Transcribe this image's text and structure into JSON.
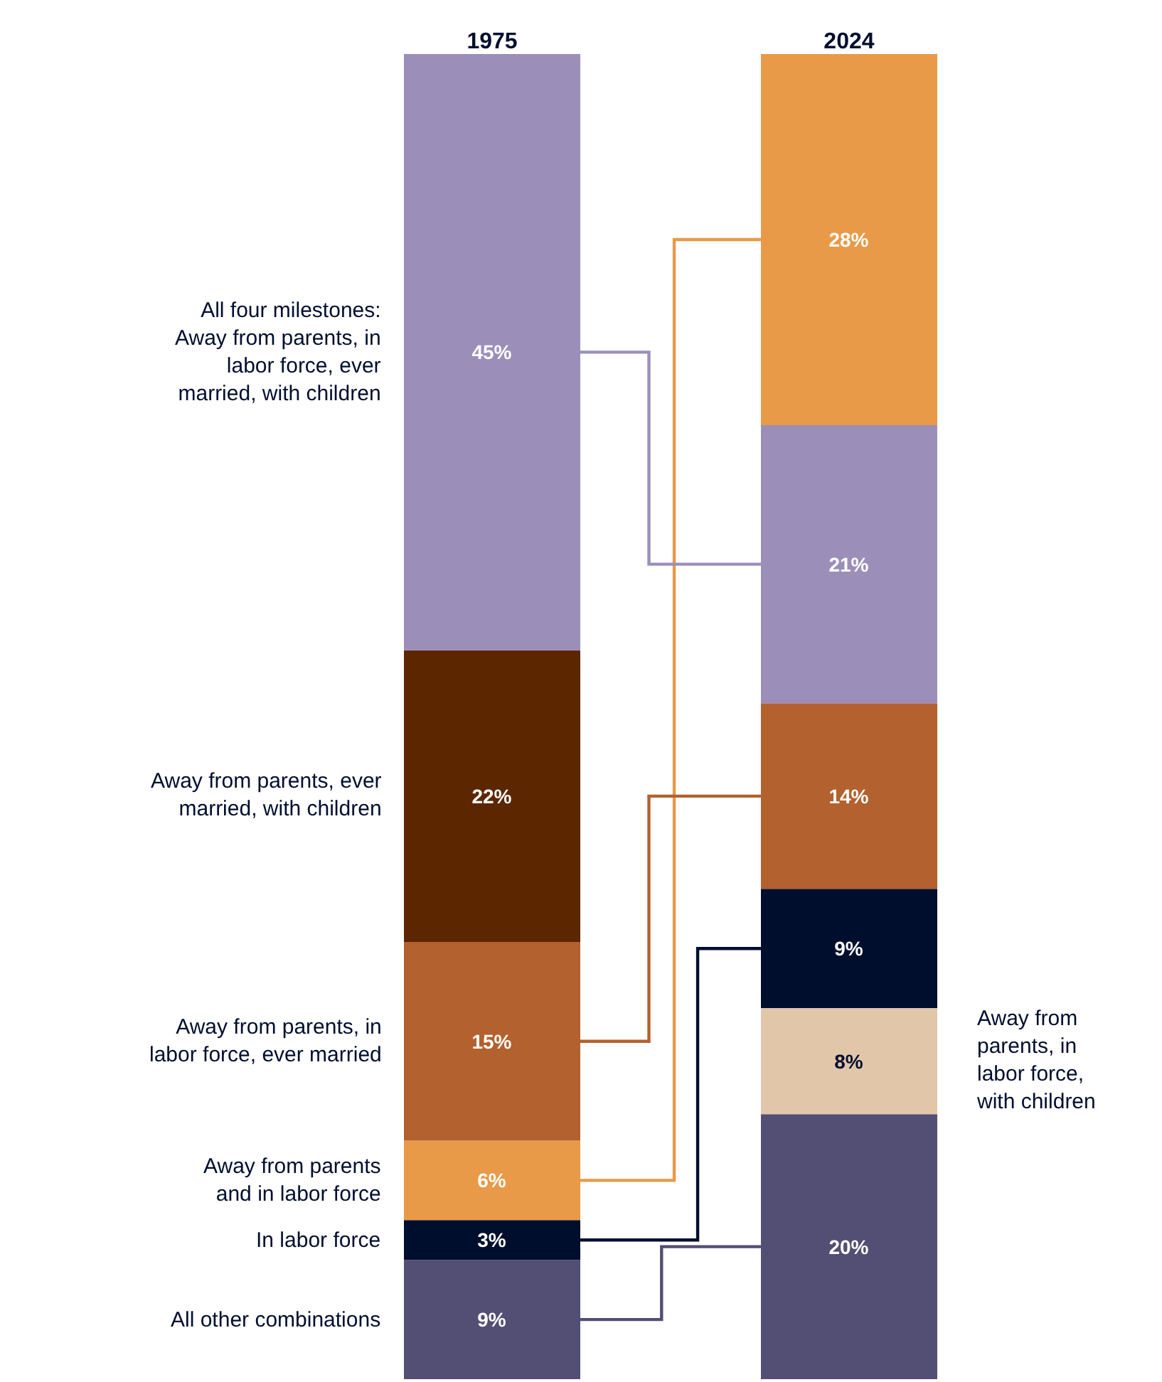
{
  "chart_data": [
    {
      "type": "bar",
      "stacked": true,
      "categories": [
        "1975"
      ],
      "legend": false,
      "series": [
        {
          "name": "All other combinations",
          "color": "#534e74",
          "values": [
            9
          ],
          "value_labels": [
            "9%"
          ]
        },
        {
          "name": "In labor force",
          "color": "#000e2e",
          "values": [
            3
          ],
          "value_labels": [
            "3%"
          ]
        },
        {
          "name": "Away from parents\nand in labor force",
          "color": "#e89a48",
          "values": [
            6
          ],
          "value_labels": [
            "6%"
          ]
        },
        {
          "name": "Away from parents, in\nlabor force, ever married",
          "color": "#b3612f",
          "values": [
            15
          ],
          "value_labels": [
            "15%"
          ]
        },
        {
          "name": "Away from parents, ever\nmarried, with children",
          "color": "#5c2600",
          "values": [
            22
          ],
          "value_labels": [
            "22%"
          ]
        },
        {
          "name": "All four milestones:\nAway from parents, in\nlabor force, ever\nmarried, with children",
          "color": "#9b8fba",
          "values": [
            45
          ],
          "value_labels": [
            "45%"
          ]
        }
      ]
    },
    {
      "type": "bar",
      "stacked": true,
      "categories": [
        "2024"
      ],
      "legend": false,
      "series": [
        {
          "color": "#534e74",
          "values": [
            20
          ],
          "value_labels": [
            "20%"
          ]
        },
        {
          "name": "Away from\nparents, in\nlabor force,\nwith children",
          "color": "#e2c6aa",
          "values": [
            8
          ],
          "value_labels": [
            "8%"
          ]
        },
        {
          "color": "#000e2e",
          "values": [
            9
          ],
          "value_labels": [
            "9%"
          ]
        },
        {
          "color": "#b3612f",
          "values": [
            14
          ],
          "value_labels": [
            "14%"
          ]
        },
        {
          "color": "#9b8fba",
          "values": [
            21
          ],
          "value_labels": [
            "21%"
          ]
        },
        {
          "color": "#e89a48",
          "values": [
            28
          ],
          "value_labels": [
            "28%"
          ]
        }
      ]
    }
  ]
}
